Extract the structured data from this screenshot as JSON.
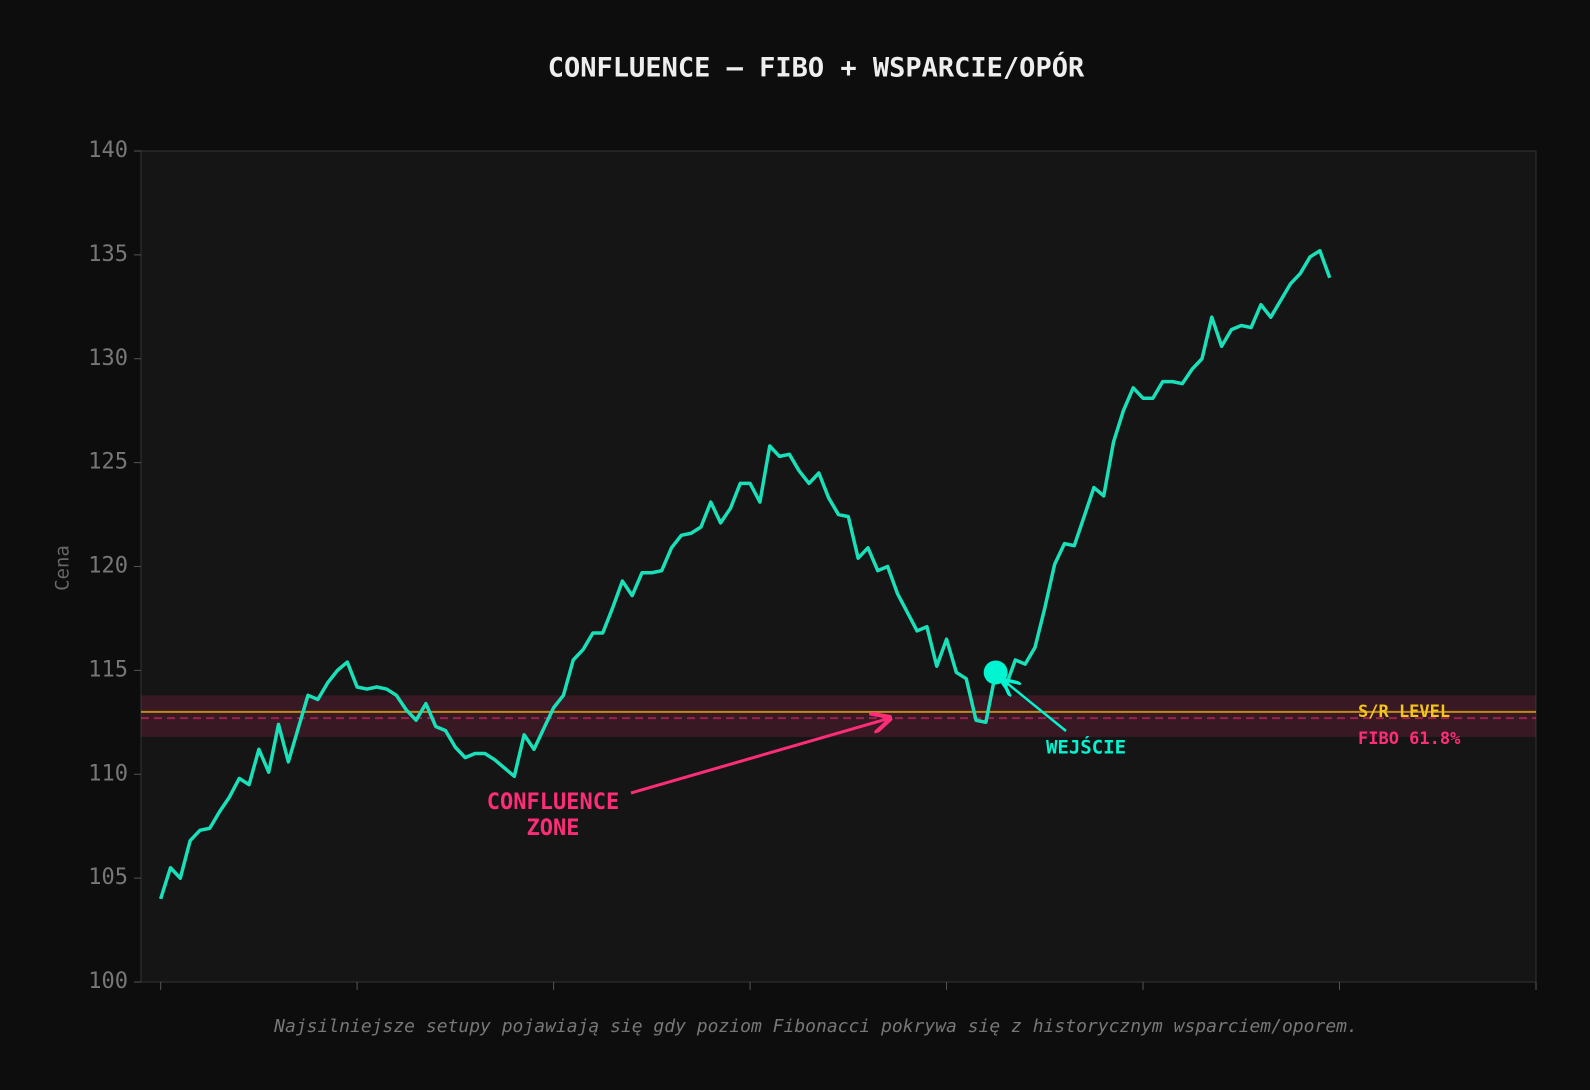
{
  "chart_data": {
    "type": "line",
    "title": "CONFLUENCE — FIBO + WSPARCIE/OPÓR",
    "ylabel": "Cena",
    "caption": "Najsilniejsze setupy pojawiają się gdy poziom Fibonacci pokrywa się z historycznym wsparciem/oporem.",
    "x": [
      0,
      1,
      2,
      3,
      4,
      5,
      6,
      7,
      8,
      9,
      10,
      11,
      12,
      13,
      14,
      15,
      16,
      17,
      18,
      19,
      20,
      21,
      22,
      23,
      24,
      25,
      26,
      27,
      28,
      29,
      30,
      31,
      32,
      33,
      34,
      35,
      36,
      37,
      38,
      39,
      40,
      41,
      42,
      43,
      44,
      45,
      46,
      47,
      48,
      49,
      50,
      51,
      52,
      53,
      54,
      55,
      56,
      57,
      58,
      59,
      60,
      61,
      62,
      63,
      64,
      65,
      66,
      67,
      68,
      69,
      70,
      71,
      72,
      73,
      74,
      75,
      76,
      77,
      78,
      79,
      80,
      81,
      82,
      83,
      84,
      85,
      86,
      87,
      88,
      89,
      90,
      91,
      92,
      93,
      94,
      95,
      96,
      97,
      98,
      99,
      100,
      101,
      102,
      103,
      104,
      105,
      106,
      107,
      108,
      109,
      110,
      111,
      112,
      113,
      114,
      115,
      116,
      117,
      118,
      119
    ],
    "series": [
      {
        "color": "#19e0b8",
        "values": [
          104.0,
          105.5,
          105.0,
          106.8,
          107.3,
          107.4,
          108.2,
          108.9,
          109.8,
          109.5,
          111.2,
          110.1,
          112.4,
          110.6,
          112.2,
          113.8,
          113.6,
          114.4,
          115.0,
          115.4,
          114.2,
          114.1,
          114.2,
          114.1,
          113.8,
          113.1,
          112.6,
          113.4,
          112.3,
          112.1,
          111.3,
          110.8,
          111.0,
          111.0,
          110.7,
          110.3,
          109.9,
          111.9,
          111.2,
          112.2,
          113.2,
          113.8,
          115.5,
          116.0,
          116.8,
          116.8,
          118.0,
          119.3,
          118.6,
          119.7,
          119.7,
          119.8,
          120.9,
          121.5,
          121.6,
          121.9,
          123.1,
          122.1,
          122.8,
          124.0,
          124.0,
          123.1,
          125.8,
          125.3,
          125.4,
          124.6,
          124.0,
          124.5,
          123.3,
          122.5,
          122.4,
          120.4,
          120.9,
          119.8,
          120.0,
          118.7,
          117.8,
          116.9,
          117.1,
          115.2,
          116.5,
          114.9,
          114.6,
          112.6,
          112.5,
          114.9,
          114.2,
          115.5,
          115.3,
          116.1,
          118.0,
          120.1,
          121.1,
          121.0,
          122.4,
          123.8,
          123.4,
          126.0,
          127.5,
          128.6,
          128.1,
          128.1,
          128.9,
          128.9,
          128.8,
          129.5,
          130.0,
          132.0,
          130.6,
          131.4,
          131.6,
          131.5,
          132.6,
          132.0,
          132.8,
          133.6,
          134.1,
          134.9,
          135.2,
          133.9
        ]
      }
    ],
    "xlim": [
      -2,
      140
    ],
    "xticks": [
      0,
      20,
      40,
      60,
      80,
      100,
      120,
      140
    ],
    "ylim": [
      100,
      140
    ],
    "yticks": [
      100,
      105,
      110,
      115,
      120,
      125,
      130,
      135,
      140
    ],
    "zone": {
      "range": [
        111.8,
        113.8
      ],
      "color": "#ff2d78",
      "label": [
        "CONFLUENCE",
        "ZONE"
      ]
    },
    "sr_level": {
      "value": 113.0,
      "color": "#e0a81c",
      "label": "S/R LEVEL"
    },
    "fibo_level": {
      "value": 112.7,
      "color": "#ff2d78",
      "label": "FIBO 61.8%"
    },
    "entry": {
      "x": 85,
      "value": 114.9,
      "color": "#00f5d0",
      "label": "WEJŚCIE"
    }
  }
}
